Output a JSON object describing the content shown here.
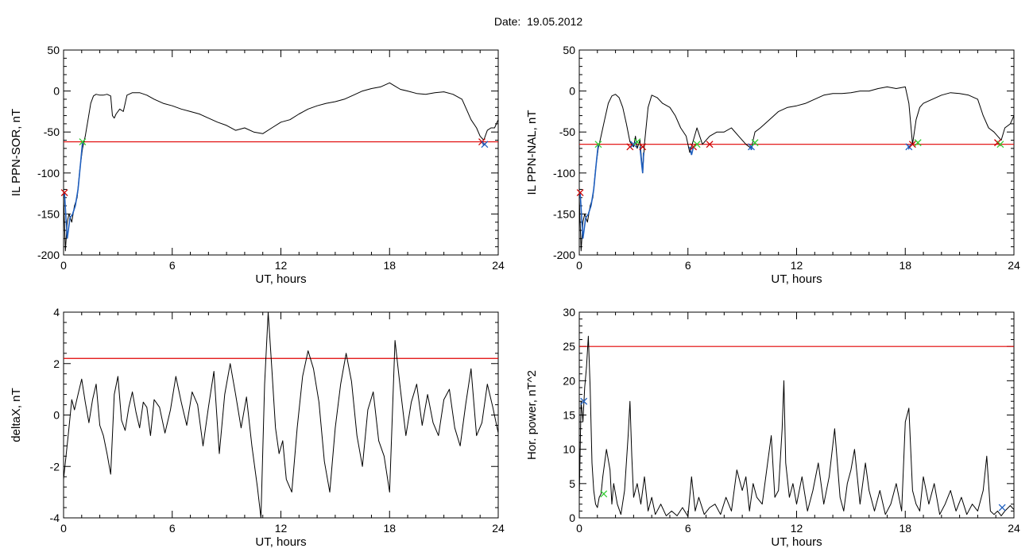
{
  "figure": {
    "title": "Date:  19.05.2012"
  },
  "chart_data": [
    {
      "type": "line",
      "id": "ppn-sor",
      "xlabel": "UT, hours",
      "ylabel": "IL PPN-SOR, nT",
      "xlim": [
        0,
        24
      ],
      "ylim": [
        -200,
        50
      ],
      "xticks": [
        "0",
        "6",
        "12",
        "18",
        "24"
      ],
      "yticks": [
        "-200",
        "-150",
        "-100",
        "-50",
        "0",
        "50"
      ],
      "threshold": -62,
      "series": [
        {
          "color": "#000000",
          "x": [
            0,
            0.1,
            0.2,
            0.3,
            0.45,
            0.6,
            0.75,
            0.9,
            1.05,
            1.2,
            1.35,
            1.5,
            1.65,
            1.8,
            2.0,
            2.2,
            2.4,
            2.6,
            2.7,
            2.8,
            2.9,
            3.1,
            3.3,
            3.5,
            3.8,
            4.2,
            4.6,
            5.0,
            5.5,
            6.0,
            6.5,
            7.0,
            7.5,
            8.0,
            8.5,
            9.0,
            9.5,
            10.0,
            10.5,
            11.0,
            11.5,
            12.0,
            12.5,
            13.0,
            13.5,
            14.0,
            14.5,
            15.0,
            15.5,
            16.0,
            16.5,
            17.0,
            17.5,
            18.0,
            18.3,
            18.6,
            19.0,
            19.5,
            20.0,
            20.5,
            21.0,
            21.5,
            22.0,
            22.3,
            22.5,
            22.8,
            23.0,
            23.2,
            23.4,
            23.6,
            23.8,
            24.0
          ],
          "y": [
            -130,
            -195,
            -160,
            -150,
            -160,
            -140,
            -130,
            -95,
            -70,
            -55,
            -35,
            -15,
            -6,
            -4,
            -5,
            -5,
            -4,
            -6,
            -30,
            -33,
            -28,
            -22,
            -25,
            -5,
            -2,
            -2,
            -5,
            -10,
            -15,
            -18,
            -22,
            -25,
            -28,
            -33,
            -38,
            -42,
            -48,
            -45,
            -50,
            -52,
            -45,
            -38,
            -35,
            -28,
            -22,
            -18,
            -15,
            -13,
            -10,
            -5,
            0,
            3,
            5,
            10,
            6,
            2,
            0,
            -3,
            -4,
            -2,
            -1,
            -4,
            -10,
            -25,
            -35,
            -45,
            -55,
            -60,
            -48,
            -45,
            -45,
            -35
          ]
        }
      ],
      "markers": [
        {
          "x": 0.05,
          "y": -124,
          "color": "#cc0000"
        },
        {
          "x": 1.05,
          "y": -62,
          "color": "#33cc33"
        },
        {
          "x": 23.1,
          "y": -62,
          "color": "#cc0000"
        },
        {
          "x": 23.25,
          "y": -65,
          "color": "#1f5fbf"
        }
      ],
      "highlights": [
        {
          "x": [
            0.05,
            0.2,
            0.35,
            0.5,
            0.65,
            0.8,
            0.95,
            1.05
          ],
          "y": [
            -124,
            -180,
            -155,
            -150,
            -140,
            -120,
            -85,
            -62
          ],
          "color": "#1f5fbf"
        },
        {
          "x": [
            23.1,
            23.2,
            23.3
          ],
          "y": [
            -62,
            -66,
            -64
          ],
          "color": "#1f5fbf"
        }
      ]
    },
    {
      "type": "line",
      "id": "ppn-nal",
      "xlabel": "UT, hours",
      "ylabel": "IL PPN-NAL, nT",
      "xlim": [
        0,
        24
      ],
      "ylim": [
        -200,
        50
      ],
      "xticks": [
        "0",
        "6",
        "12",
        "18",
        "24"
      ],
      "yticks": [
        "-200",
        "-150",
        "-100",
        "-50",
        "0",
        "50"
      ],
      "threshold": -65,
      "series": [
        {
          "color": "#000000",
          "x": [
            0,
            0.1,
            0.2,
            0.3,
            0.45,
            0.6,
            0.75,
            0.9,
            1.05,
            1.2,
            1.4,
            1.6,
            1.8,
            2.0,
            2.2,
            2.4,
            2.6,
            2.8,
            3.0,
            3.1,
            3.2,
            3.35,
            3.5,
            3.6,
            3.8,
            4.0,
            4.3,
            4.6,
            5.0,
            5.3,
            5.6,
            5.9,
            6.1,
            6.3,
            6.5,
            6.8,
            7.2,
            7.6,
            8.0,
            8.4,
            8.8,
            9.2,
            9.5,
            9.7,
            10.0,
            10.5,
            11.0,
            11.5,
            12.0,
            12.5,
            13.0,
            13.5,
            14.0,
            14.5,
            15.0,
            15.5,
            16.0,
            16.5,
            17.0,
            17.5,
            18.0,
            18.2,
            18.4,
            18.6,
            18.8,
            19.0,
            19.5,
            20.0,
            20.5,
            21.0,
            21.5,
            22.0,
            22.3,
            22.6,
            22.9,
            23.1,
            23.3,
            23.5,
            23.8,
            24.0
          ],
          "y": [
            -130,
            -195,
            -160,
            -150,
            -160,
            -140,
            -130,
            -95,
            -70,
            -55,
            -35,
            -15,
            -6,
            -4,
            -8,
            -20,
            -40,
            -62,
            -68,
            -55,
            -70,
            -60,
            -100,
            -65,
            -20,
            -5,
            -8,
            -15,
            -20,
            -30,
            -45,
            -55,
            -75,
            -60,
            -45,
            -65,
            -55,
            -50,
            -50,
            -45,
            -55,
            -65,
            -70,
            -50,
            -45,
            -35,
            -25,
            -20,
            -18,
            -15,
            -10,
            -5,
            -3,
            -3,
            -2,
            0,
            0,
            3,
            5,
            3,
            5,
            -15,
            -65,
            -35,
            -20,
            -15,
            -10,
            -5,
            -2,
            -3,
            -5,
            -10,
            -30,
            -45,
            -50,
            -55,
            -60,
            -45,
            -40,
            -30
          ]
        }
      ],
      "markers": [
        {
          "x": 0.05,
          "y": -124,
          "color": "#cc0000"
        },
        {
          "x": 1.05,
          "y": -65,
          "color": "#33cc33"
        },
        {
          "x": 2.8,
          "y": -68,
          "color": "#cc0000"
        },
        {
          "x": 3.0,
          "y": -65,
          "color": "#1f5fbf"
        },
        {
          "x": 3.2,
          "y": -62,
          "color": "#33cc33"
        },
        {
          "x": 3.5,
          "y": -68,
          "color": "#cc0000"
        },
        {
          "x": 6.3,
          "y": -68,
          "color": "#cc0000"
        },
        {
          "x": 6.5,
          "y": -65,
          "color": "#33cc33"
        },
        {
          "x": 7.2,
          "y": -65,
          "color": "#cc0000"
        },
        {
          "x": 9.5,
          "y": -68,
          "color": "#1f5fbf"
        },
        {
          "x": 9.7,
          "y": -63,
          "color": "#33cc33"
        },
        {
          "x": 18.2,
          "y": -68,
          "color": "#1f5fbf"
        },
        {
          "x": 18.4,
          "y": -65,
          "color": "#cc0000"
        },
        {
          "x": 18.7,
          "y": -63,
          "color": "#33cc33"
        },
        {
          "x": 23.1,
          "y": -63,
          "color": "#cc0000"
        },
        {
          "x": 23.25,
          "y": -65,
          "color": "#33cc33"
        }
      ],
      "highlights": [
        {
          "x": [
            0.05,
            0.2,
            0.35,
            0.5,
            0.65,
            0.8,
            0.95,
            1.05
          ],
          "y": [
            -124,
            -180,
            -155,
            -150,
            -140,
            -120,
            -85,
            -65
          ],
          "color": "#1f5fbf"
        },
        {
          "x": [
            3.35,
            3.45,
            3.5,
            3.55
          ],
          "y": [
            -68,
            -90,
            -100,
            -75
          ],
          "color": "#1f5fbf"
        },
        {
          "x": [
            6.1,
            6.2,
            6.3
          ],
          "y": [
            -68,
            -78,
            -68
          ],
          "color": "#1f5fbf"
        },
        {
          "x": [
            9.45,
            9.5,
            9.55
          ],
          "y": [
            -66,
            -72,
            -66
          ],
          "color": "#1f5fbf"
        },
        {
          "x": [
            18.15,
            18.2,
            18.3
          ],
          "y": [
            -66,
            -70,
            -66
          ],
          "color": "#1f5fbf"
        }
      ]
    },
    {
      "type": "line",
      "id": "delta-x",
      "xlabel": "UT, hours",
      "ylabel": "deltaX, nT",
      "xlim": [
        0,
        24
      ],
      "ylim": [
        -4,
        4
      ],
      "xticks": [
        "0",
        "6",
        "12",
        "18",
        "24"
      ],
      "yticks": [
        "-4",
        "-2",
        "0",
        "2",
        "4"
      ],
      "threshold": 2.2,
      "series": [
        {
          "color": "#000000",
          "x": [
            0,
            0.15,
            0.3,
            0.45,
            0.6,
            0.8,
            1.0,
            1.2,
            1.4,
            1.6,
            1.8,
            2.0,
            2.2,
            2.4,
            2.6,
            2.8,
            3.0,
            3.2,
            3.4,
            3.6,
            3.8,
            4.0,
            4.2,
            4.4,
            4.6,
            4.8,
            5.0,
            5.3,
            5.6,
            5.9,
            6.2,
            6.5,
            6.8,
            7.1,
            7.4,
            7.7,
            8.0,
            8.3,
            8.6,
            8.9,
            9.2,
            9.5,
            9.8,
            10.1,
            10.4,
            10.7,
            10.9,
            11.1,
            11.3,
            11.5,
            11.7,
            11.9,
            12.1,
            12.3,
            12.6,
            12.9,
            13.2,
            13.5,
            13.8,
            14.1,
            14.4,
            14.7,
            15.0,
            15.3,
            15.6,
            15.9,
            16.2,
            16.5,
            16.8,
            17.1,
            17.4,
            17.7,
            18.0,
            18.3,
            18.6,
            18.9,
            19.2,
            19.5,
            19.8,
            20.1,
            20.4,
            20.7,
            21.0,
            21.3,
            21.6,
            21.9,
            22.2,
            22.5,
            22.8,
            23.1,
            23.4,
            23.7,
            24.0
          ],
          "y": [
            -2.5,
            -1.5,
            -0.5,
            0.6,
            0.2,
            0.8,
            1.4,
            0.5,
            -0.3,
            0.6,
            1.2,
            -0.4,
            -0.8,
            -1.5,
            -2.3,
            0.8,
            1.5,
            -0.2,
            -0.6,
            0.3,
            0.9,
            0.1,
            -0.5,
            0.5,
            0.3,
            -0.8,
            0.6,
            0.3,
            -0.7,
            0.2,
            1.5,
            0.5,
            -0.4,
            0.9,
            0.4,
            -1.2,
            0.3,
            1.7,
            -1.5,
            0.8,
            2.0,
            0.8,
            -0.5,
            0.7,
            -1.2,
            -2.8,
            -4.0,
            1.2,
            4.0,
            1.8,
            -0.5,
            -1.5,
            -1.0,
            -2.5,
            -3.0,
            -0.5,
            1.5,
            2.5,
            1.8,
            0.5,
            -1.8,
            -3.0,
            -0.5,
            1.2,
            2.4,
            1.3,
            -0.8,
            -2.0,
            0.2,
            0.9,
            -1.0,
            -1.6,
            -3.0,
            2.9,
            1.0,
            -0.8,
            0.5,
            1.2,
            -0.4,
            0.8,
            -0.3,
            -0.8,
            0.6,
            1.0,
            -0.5,
            -1.2,
            0.4,
            1.8,
            -0.8,
            -0.3,
            1.2,
            0.3,
            -0.7
          ]
        }
      ],
      "markers": [],
      "highlights": []
    },
    {
      "type": "line",
      "id": "hor-power",
      "xlabel": "UT, hours",
      "ylabel": "Hor. power, nT^2",
      "xlim": [
        0,
        24
      ],
      "ylim": [
        0,
        30
      ],
      "xticks": [
        "0",
        "6",
        "12",
        "18",
        "24"
      ],
      "yticks": [
        "0",
        "5",
        "10",
        "15",
        "20",
        "25",
        "30"
      ],
      "threshold": 25,
      "series": [
        {
          "color": "#000000",
          "x": [
            0,
            0.1,
            0.2,
            0.3,
            0.4,
            0.5,
            0.6,
            0.7,
            0.8,
            0.9,
            1.0,
            1.1,
            1.2,
            1.3,
            1.5,
            1.7,
            1.8,
            1.9,
            2.1,
            2.3,
            2.5,
            2.7,
            2.8,
            2.9,
            3.0,
            3.2,
            3.4,
            3.6,
            3.8,
            4.0,
            4.2,
            4.5,
            4.8,
            5.1,
            5.4,
            5.7,
            6.0,
            6.2,
            6.4,
            6.6,
            6.9,
            7.2,
            7.5,
            7.8,
            8.1,
            8.4,
            8.7,
            9.0,
            9.2,
            9.4,
            9.6,
            9.8,
            10.1,
            10.4,
            10.6,
            10.8,
            11.0,
            11.2,
            11.3,
            11.4,
            11.6,
            11.8,
            12.0,
            12.3,
            12.6,
            12.9,
            13.2,
            13.5,
            13.8,
            14.1,
            14.4,
            14.6,
            14.8,
            15.0,
            15.2,
            15.5,
            15.8,
            16.0,
            16.3,
            16.6,
            16.9,
            17.2,
            17.5,
            17.8,
            18.0,
            18.2,
            18.4,
            18.6,
            18.8,
            19.0,
            19.3,
            19.6,
            19.9,
            20.2,
            20.5,
            20.8,
            21.1,
            21.4,
            21.7,
            22.0,
            22.3,
            22.5,
            22.7,
            22.9,
            23.1,
            23.3,
            23.5,
            23.8,
            24.0
          ],
          "y": [
            3,
            17,
            14,
            19,
            22,
            26.5,
            19,
            8,
            4,
            2,
            1.5,
            3,
            3.5,
            6,
            10,
            7,
            2,
            5,
            2,
            0.5,
            4,
            12,
            17,
            9,
            3,
            5,
            2,
            6,
            1,
            3,
            0.5,
            2,
            0.3,
            1,
            0.3,
            1.5,
            0.2,
            6,
            1,
            3,
            0.5,
            1.5,
            2,
            0.5,
            3,
            1,
            7,
            4,
            6,
            1,
            5,
            3,
            2,
            8,
            12,
            3,
            4,
            13,
            20,
            8,
            3,
            5,
            2,
            6,
            1,
            4,
            8,
            2,
            6,
            13,
            3,
            1,
            5,
            7,
            10,
            2,
            8,
            4,
            1,
            4,
            0.5,
            2,
            5,
            1,
            14,
            16,
            4,
            2,
            1,
            6,
            2,
            5,
            0.5,
            2,
            4,
            1,
            3,
            0.5,
            2,
            1,
            4,
            9,
            1,
            0.5,
            1,
            0.3,
            1,
            1.8,
            1.2
          ]
        }
      ],
      "markers": [
        {
          "x": 0.25,
          "y": 17,
          "color": "#1f5fbf"
        },
        {
          "x": 1.35,
          "y": 3.5,
          "color": "#33cc33"
        },
        {
          "x": 23.35,
          "y": 1.5,
          "color": "#1f5fbf"
        }
      ],
      "highlights": []
    }
  ]
}
